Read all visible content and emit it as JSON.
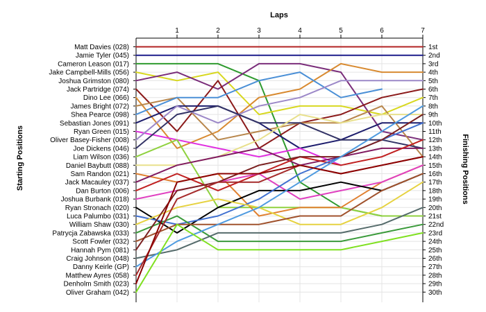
{
  "chart_data": {
    "type": "line",
    "title": "Laps",
    "xlabel": "Laps",
    "ylabel_left": "Starting Positions",
    "ylabel_right": "Finishing Positions",
    "laps": [
      "1",
      "2",
      "3",
      "4",
      "5",
      "6",
      "7"
    ],
    "starting_order": [
      "Matt Davies (028)",
      "Jamie Tyler (045)",
      "Cameron Leason (017)",
      "Jake Campbell-Mills (056)",
      "Joshua Grimston (080)",
      "Jack Partridge (074)",
      "Dino Lee (066)",
      "James Bright (072)",
      "Shea Pearce (098)",
      "Sebastian Jones (091)",
      "Ryan Green (015)",
      "Oliver Basey-Fisher (008)",
      "Joe Dickens (046)",
      "Liam Wilson (036)",
      "Daniel Baybutt (088)",
      "Sam Randon (021)",
      "Jack Macauley (037)",
      "Dan Burton (006)",
      "Joshua Burbank (018)",
      "Ryan Stronach (020)",
      "Luca Palumbo (031)",
      "William Shaw (030)",
      "Patrycja Zabawska (033)",
      "Scott Fowler (032)",
      "Hannah Pym (081)",
      "Craig Johnson (048)",
      "Danny Keirle (GP)",
      "Matthew Ayres (058)",
      "Denholm Smith (023)",
      "Oliver Graham (042)"
    ],
    "finishing_labels": [
      "1st",
      "2nd",
      "3rd",
      "4th",
      "5th",
      "6th",
      "7th",
      "8th",
      "9th",
      "10th",
      "11th",
      "12th",
      "13th",
      "14th",
      "15th",
      "16th",
      "17th",
      "18th",
      "19th",
      "20th",
      "21st",
      "22nd",
      "23rd",
      "24th",
      "25th",
      "26th",
      "27th",
      "28th",
      "29th",
      "30th"
    ],
    "series": [
      {
        "color": "#b22222",
        "positions": [
          1,
          1,
          1,
          1,
          1,
          1,
          1,
          1
        ]
      },
      {
        "color": "#1c1c8c",
        "positions": [
          2,
          2,
          2,
          2,
          2,
          2,
          2,
          2
        ]
      },
      {
        "color": "#2e9a2e",
        "positions": [
          3,
          3,
          3,
          5,
          17,
          20,
          21,
          21
        ]
      },
      {
        "color": "#d8d820",
        "positions": [
          4,
          5,
          4,
          9,
          8,
          8,
          9,
          7
        ]
      },
      {
        "color": "#7a2d7a",
        "positions": [
          5,
          4,
          6,
          3,
          3,
          4,
          11,
          12
        ]
      },
      {
        "color": "#8b1a1a",
        "positions": [
          6,
          11,
          5,
          13,
          10,
          9,
          7,
          6
        ]
      },
      {
        "color": "#d88a30",
        "positions": [
          7,
          13,
          11,
          7,
          6,
          3,
          4,
          4
        ]
      },
      {
        "color": "#b8864b",
        "positions": [
          8,
          7,
          12,
          11,
          10,
          10,
          8,
          14
        ]
      },
      {
        "color": "#4a8fd6",
        "positions": [
          9,
          7,
          7,
          5,
          4,
          7,
          6,
          null
        ]
      },
      {
        "color": "#1c1c6c",
        "positions": [
          10,
          8,
          8,
          10,
          13,
          12,
          10,
          10
        ]
      },
      {
        "color": "#e030e0",
        "positions": [
          11,
          12,
          13,
          14,
          13,
          15,
          null,
          null
        ]
      },
      {
        "color": "#9c88c8",
        "positions": [
          12,
          8,
          10,
          8,
          7,
          5,
          5,
          5
        ]
      },
      {
        "color": "#333366",
        "positions": [
          13,
          9,
          8,
          10,
          10,
          12,
          12,
          13
        ]
      },
      {
        "color": "#8fd13f",
        "positions": [
          14,
          12,
          20,
          20,
          20,
          20,
          21,
          21
        ]
      },
      {
        "color": "#e8e08c",
        "positions": [
          15,
          15,
          14,
          12,
          9,
          10,
          9,
          9
        ]
      },
      {
        "color": "#e08030",
        "positions": [
          16,
          17,
          16,
          21,
          20,
          20,
          17,
          15
        ]
      },
      {
        "color": "#801a60",
        "positions": [
          17,
          15,
          14,
          13,
          15,
          14,
          13,
          13
        ]
      },
      {
        "color": "#c02020",
        "positions": [
          18,
          16,
          18,
          16,
          14,
          15,
          14,
          12
        ]
      },
      {
        "color": "#e040c0",
        "positions": [
          19,
          18,
          17,
          16,
          19,
          18,
          17,
          15
        ]
      },
      {
        "color": "#000000",
        "positions": [
          20,
          23,
          20,
          18,
          18,
          17,
          18,
          16
        ]
      },
      {
        "color": "#4070d0",
        "positions": [
          21,
          22,
          21,
          19,
          16,
          14,
          12,
          10
        ]
      },
      {
        "color": "#e6d240",
        "positions": [
          22,
          20,
          19,
          20,
          22,
          22,
          20,
          17
        ]
      },
      {
        "color": "#3a9a3a",
        "positions": [
          23,
          21,
          24,
          24,
          24,
          24,
          23,
          22
        ]
      },
      {
        "color": "#a0522d",
        "positions": [
          24,
          22,
          22,
          22,
          21,
          21,
          18,
          16
        ]
      },
      {
        "color": "#7a2020",
        "positions": [
          25,
          18,
          17,
          15,
          14,
          14,
          12,
          9
        ]
      },
      {
        "color": "#556b6b",
        "positions": [
          26,
          25,
          23,
          23,
          23,
          23,
          22,
          20
        ]
      },
      {
        "color": "#4f9be0",
        "positions": [
          27,
          24,
          22,
          20,
          17,
          14,
          11,
          8
        ]
      },
      {
        "color": "#a52a2a",
        "positions": [
          28,
          19,
          17,
          17,
          15,
          16,
          15,
          14
        ]
      },
      {
        "color": "#8b0000",
        "positions": [
          29,
          17,
          16,
          16,
          15,
          16,
          15,
          14
        ]
      },
      {
        "color": "#7fe020",
        "positions": [
          30,
          22,
          25,
          25,
          25,
          25,
          24,
          23
        ]
      }
    ]
  }
}
